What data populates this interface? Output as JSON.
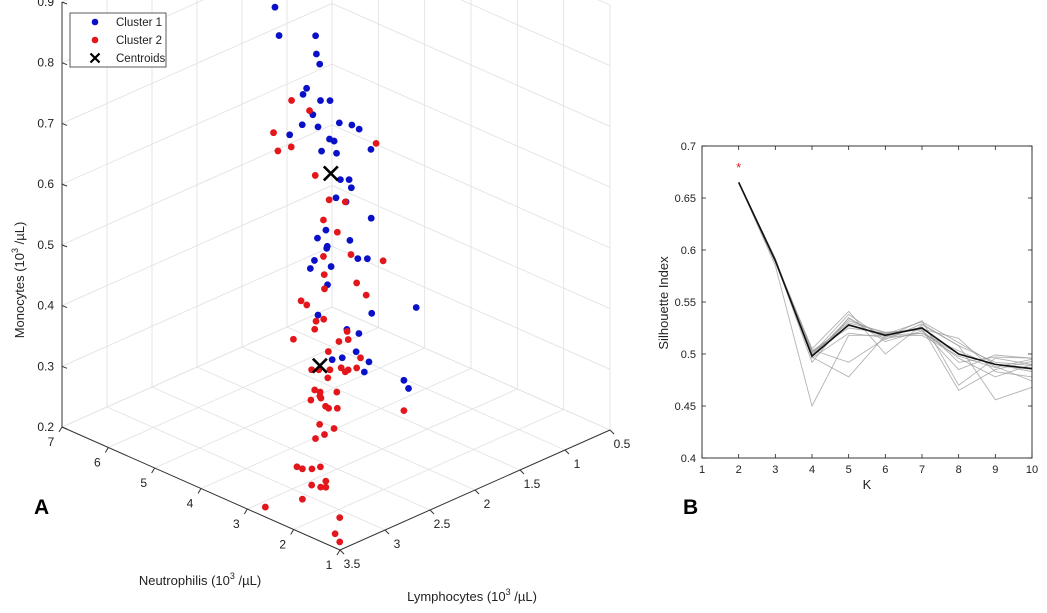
{
  "chart_data": [
    {
      "type": "scatter",
      "panel_label": "A",
      "projection": "3d",
      "xlabel": {
        "main": "Neutrophilis (10",
        "sup": "3",
        "tail": " /µL)"
      },
      "ylabel": {
        "main": "Lymphocytes (10",
        "sup": "3",
        "tail": " /µL)"
      },
      "zlabel": {
        "main": "Monocytes (10",
        "sup": "3",
        "tail": " /µL)"
      },
      "xlim": [
        1,
        7
      ],
      "ylim": [
        0.5,
        3.5
      ],
      "zlim": [
        0.2,
        0.9
      ],
      "xticks": [
        "1",
        "2",
        "3",
        "4",
        "5",
        "6",
        "7"
      ],
      "yticks": [
        "0.5",
        "1",
        "1.5",
        "2",
        "2.5",
        "3",
        "3.5"
      ],
      "zticks": [
        "0.2",
        "0.3",
        "0.4",
        "0.5",
        "0.6",
        "0.7",
        "0.8",
        "0.9"
      ],
      "grid": true,
      "legend_position": "top-left",
      "series": [
        {
          "name": "Cluster 1",
          "color": "#0a10c8",
          "marker": "circle",
          "points": [
            [
              5.8,
              1.4,
              0.66
            ],
            [
              5.9,
              1.7,
              0.81
            ],
            [
              6.2,
              1.5,
              0.74
            ],
            [
              5.8,
              1.3,
              0.74
            ],
            [
              5.2,
              1.6,
              0.75
            ],
            [
              5.1,
              1.8,
              0.7
            ],
            [
              6.1,
              1.1,
              0.67
            ],
            [
              5.5,
              1.4,
              0.65
            ],
            [
              5.1,
              1.5,
              0.67
            ],
            [
              5.0,
              2.0,
              0.65
            ],
            [
              4.5,
              2.0,
              0.7
            ],
            [
              4.7,
              1.8,
              0.62
            ],
            [
              4.9,
              1.5,
              0.64
            ],
            [
              5.4,
              1.3,
              0.58
            ],
            [
              5.7,
              1.5,
              0.61
            ],
            [
              5.5,
              1.3,
              0.58
            ],
            [
              5.6,
              1.0,
              0.58
            ],
            [
              4.8,
              1.2,
              0.58
            ],
            [
              4.1,
              1.9,
              0.6
            ],
            [
              4.3,
              1.7,
              0.58
            ],
            [
              3.5,
              2.0,
              0.71
            ],
            [
              4.0,
              2.0,
              0.58
            ],
            [
              4.0,
              2.2,
              0.71
            ],
            [
              3.6,
              2.2,
              0.68
            ],
            [
              3.8,
              2.2,
              0.52
            ],
            [
              3.2,
              2.3,
              0.62
            ],
            [
              4.6,
              1.3,
              0.48
            ],
            [
              4.8,
              1.7,
              0.48
            ],
            [
              4.4,
              2.0,
              0.5
            ],
            [
              4.1,
              1.6,
              0.45
            ],
            [
              3.7,
              2.0,
              0.52
            ],
            [
              4.3,
              1.9,
              0.45
            ],
            [
              3.6,
              2.3,
              0.47
            ],
            [
              3.7,
              1.9,
              0.36
            ],
            [
              4.0,
              2.2,
              0.4
            ],
            [
              6.0,
              0.8,
              0.45
            ],
            [
              3.3,
              2.6,
              0.54
            ],
            [
              4.6,
              0.8,
              0.3
            ],
            [
              3.5,
              2.3,
              0.35
            ],
            [
              2.7,
              2.6,
              0.4
            ],
            [
              3.7,
              1.4,
              0.25
            ],
            [
              3.6,
              1.4,
              0.24
            ],
            [
              2.4,
              2.6,
              0.42
            ],
            [
              2.6,
              2.6,
              0.45
            ],
            [
              4.2,
              1.5,
              0.35
            ],
            [
              3.0,
              2.2,
              0.34
            ],
            [
              2.9,
              2.2,
              0.36
            ],
            [
              4.5,
              1.5,
              0.43
            ],
            [
              4.2,
              2.0,
              0.49
            ],
            [
              3.0,
              2.8,
              0.55
            ]
          ]
        },
        {
          "name": "Cluster 2",
          "color": "#e3161c",
          "marker": "circle",
          "points": [
            [
              3.6,
              2.5,
              0.77
            ],
            [
              3.6,
              2.7,
              0.8
            ],
            [
              3.8,
              2.6,
              0.71
            ],
            [
              3.6,
              2.9,
              0.76
            ],
            [
              2.4,
              2.9,
              0.69
            ],
            [
              2.7,
              2.9,
              0.72
            ],
            [
              3.7,
              2.8,
              0.72
            ],
            [
              4.3,
              1.4,
              0.62
            ],
            [
              3.8,
              2.0,
              0.58
            ],
            [
              2.4,
              2.3,
              0.55
            ],
            [
              3.0,
              2.5,
              0.59
            ],
            [
              2.9,
              2.4,
              0.55
            ],
            [
              2.0,
              2.8,
              0.56
            ],
            [
              2.7,
              2.8,
              0.55
            ],
            [
              3.3,
              2.5,
              0.6
            ],
            [
              3.3,
              2.5,
              0.54
            ],
            [
              2.5,
              2.9,
              0.54
            ],
            [
              1.6,
              2.9,
              0.56
            ],
            [
              2.3,
              3.2,
              0.54
            ],
            [
              2.1,
              3.2,
              0.52
            ],
            [
              1.6,
              3.1,
              0.5
            ],
            [
              1.8,
              3.1,
              0.49
            ],
            [
              2.4,
              2.7,
              0.46
            ],
            [
              3.1,
              2.7,
              0.44
            ],
            [
              3.2,
              2.8,
              0.49
            ],
            [
              3.1,
              2.6,
              0.45
            ],
            [
              2.2,
              3.4,
              0.5
            ],
            [
              1.7,
              3.3,
              0.4
            ],
            [
              1.8,
              3.2,
              0.45
            ],
            [
              2.0,
              2.8,
              0.42
            ],
            [
              2.5,
              2.5,
              0.4
            ],
            [
              3.0,
              2.6,
              0.4
            ],
            [
              1.6,
              3.1,
              0.45
            ],
            [
              2.0,
              3.3,
              0.45
            ],
            [
              1.8,
              3.3,
              0.41
            ],
            [
              3.4,
              2.5,
              0.35
            ],
            [
              3.4,
              2.4,
              0.33
            ],
            [
              3.8,
              2.0,
              0.3
            ],
            [
              2.8,
              2.7,
              0.32
            ],
            [
              3.7,
              1.4,
              0.2
            ],
            [
              3.1,
              2.7,
              0.34
            ],
            [
              3.5,
              2.2,
              0.33
            ],
            [
              2.6,
              2.9,
              0.36
            ],
            [
              2.4,
              3.0,
              0.38
            ],
            [
              2.6,
              3.0,
              0.36
            ],
            [
              3.0,
              2.5,
              0.3
            ],
            [
              2.5,
              3.0,
              0.3
            ],
            [
              2.8,
              2.8,
              0.3
            ],
            [
              2.5,
              2.9,
              0.3
            ],
            [
              2.2,
              3.1,
              0.27
            ],
            [
              2.9,
              3.0,
              0.24
            ],
            [
              2.2,
              3.3,
              0.28
            ],
            [
              1.5,
              3.4,
              0.29
            ],
            [
              2.2,
              3.3,
              0.23
            ],
            [
              1.5,
              3.4,
              0.28
            ],
            [
              1.3,
              3.4,
              0.21
            ],
            [
              2.0,
              3.3,
              0.26
            ],
            [
              1.2,
              3.4,
              0.24
            ],
            [
              1.8,
              3.4,
              0.3
            ],
            [
              1.2,
              3.4,
              0.2
            ],
            [
              3.0,
              3.3,
              0.19
            ],
            [
              2.0,
              3.2,
              0.25
            ],
            [
              3.4,
              2.3,
              0.3
            ],
            [
              2.1,
              3.0,
              0.33
            ]
          ]
        },
        {
          "name": "Centroids",
          "color": "#000000",
          "marker": "x",
          "points": [
            [
              4.5,
              1.8,
              0.59
            ],
            [
              2.6,
              2.9,
              0.41
            ]
          ]
        }
      ]
    },
    {
      "type": "line",
      "panel_label": "B",
      "xlabel": "K",
      "ylabel": "Silhouette Index",
      "xlim": [
        1,
        10
      ],
      "ylim": [
        0.4,
        0.7
      ],
      "xticks": [
        "1",
        "2",
        "3",
        "4",
        "5",
        "6",
        "7",
        "8",
        "9",
        "10"
      ],
      "yticks": [
        "0.4",
        "0.45",
        "0.5",
        "0.55",
        "0.6",
        "0.65",
        "0.7"
      ],
      "grid": false,
      "x": [
        2,
        3,
        4,
        5,
        6,
        7,
        8,
        9,
        10
      ],
      "mean_series": {
        "color": "#111111",
        "values": [
          0.665,
          0.59,
          0.498,
          0.528,
          0.518,
          0.525,
          0.5,
          0.49,
          0.486
        ]
      },
      "run_series": {
        "color": "#9a9a9a",
        "runs": [
          [
            0.665,
            0.585,
            0.45,
            0.518,
            0.518,
            0.52,
            0.5,
            0.49,
            0.483
          ],
          [
            0.665,
            0.59,
            0.492,
            0.535,
            0.512,
            0.522,
            0.496,
            0.478,
            0.49
          ],
          [
            0.665,
            0.588,
            0.502,
            0.525,
            0.52,
            0.525,
            0.465,
            0.485,
            0.493
          ],
          [
            0.665,
            0.59,
            0.505,
            0.541,
            0.5,
            0.528,
            0.508,
            0.456,
            0.468
          ],
          [
            0.665,
            0.592,
            0.497,
            0.478,
            0.518,
            0.526,
            0.492,
            0.497,
            0.496
          ],
          [
            0.665,
            0.59,
            0.504,
            0.492,
            0.515,
            0.52,
            0.503,
            0.488,
            0.474
          ],
          [
            0.665,
            0.59,
            0.496,
            0.52,
            0.516,
            0.532,
            0.47,
            0.496,
            0.49
          ],
          [
            0.665,
            0.588,
            0.5,
            0.538,
            0.514,
            0.529,
            0.508,
            0.492,
            0.489
          ],
          [
            0.665,
            0.591,
            0.499,
            0.532,
            0.52,
            0.524,
            0.515,
            0.483,
            0.478
          ],
          [
            0.665,
            0.589,
            0.501,
            0.53,
            0.521,
            0.523,
            0.485,
            0.499,
            0.496
          ],
          [
            0.665,
            0.59,
            0.503,
            0.527,
            0.519,
            0.531,
            0.511,
            0.49,
            0.485
          ],
          [
            0.665,
            0.59,
            0.498,
            0.534,
            0.517,
            0.518,
            0.498,
            0.487,
            0.495
          ]
        ]
      },
      "optimum_marker": {
        "x": 2,
        "y": 0.68,
        "symbol": "*",
        "color": "#e3161c"
      }
    }
  ]
}
